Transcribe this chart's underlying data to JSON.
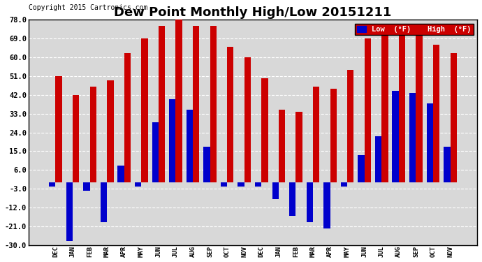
{
  "title": "Dew Point Monthly High/Low 20151211",
  "copyright": "Copyright 2015 Cartronics.com",
  "categories": [
    "DEC",
    "JAN",
    "FEB",
    "MAR",
    "APR",
    "MAY",
    "JUN",
    "JUL",
    "AUG",
    "SEP",
    "OCT",
    "NOV",
    "DEC",
    "JAN",
    "FEB",
    "MAR",
    "APR",
    "MAY",
    "JUN",
    "JUL",
    "AUG",
    "SEP",
    "OCT",
    "NOV"
  ],
  "high_values": [
    51,
    42,
    46,
    49,
    62,
    69,
    75,
    78,
    75,
    75,
    65,
    60,
    50,
    35,
    34,
    46,
    45,
    54,
    69,
    72,
    75,
    75,
    66,
    62
  ],
  "low_values": [
    -2,
    -28,
    -4,
    -19,
    8,
    -2,
    29,
    40,
    35,
    17,
    -2,
    -2,
    -2,
    -8,
    -16,
    -19,
    -22,
    -2,
    13,
    22,
    44,
    43,
    38,
    17
  ],
  "low_color": "#0000cc",
  "high_color": "#cc0000",
  "bg_color": "#ffffff",
  "plot_bg_color": "#d8d8d8",
  "ylim": [
    -30,
    78
  ],
  "yticks": [
    -30.0,
    -21.0,
    -12.0,
    -3.0,
    6.0,
    15.0,
    24.0,
    33.0,
    42.0,
    51.0,
    60.0,
    69.0,
    78.0
  ],
  "ytick_labels": [
    "-30.0",
    "-21.0",
    "-12.0",
    "-3.0",
    "6.0",
    "15.0",
    "24.0",
    "33.0",
    "42.0",
    "51.0",
    "60.0",
    "69.0",
    "78.0"
  ],
  "grid_color": "#ffffff",
  "title_fontsize": 13,
  "copyright_fontsize": 7,
  "legend_low_label": "Low  (°F)",
  "legend_high_label": "High  (°F)",
  "bar_width": 0.38
}
